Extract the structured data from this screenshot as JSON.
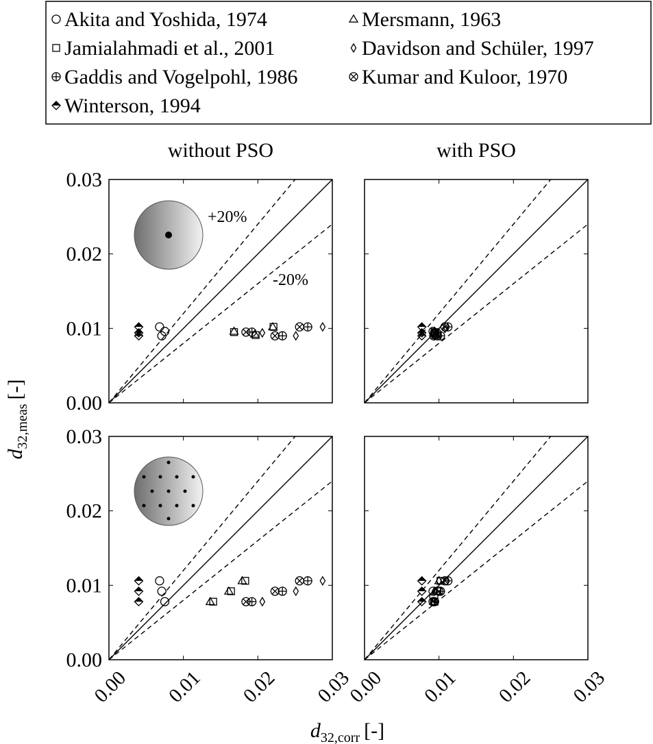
{
  "chart_data": {
    "type": "scatter",
    "column_titles": [
      "without PSO",
      "with PSO"
    ],
    "xlabel": {
      "symbol": "d",
      "subscript": "32,corr",
      "unit": "[-]"
    },
    "ylabel": {
      "symbol": "d",
      "subscript": "32,meas",
      "unit": "[-]"
    },
    "xlim": [
      0,
      0.03
    ],
    "ylim": [
      0,
      0.03
    ],
    "xticks": [
      {
        "value": 0,
        "label": "0.00"
      },
      0.01,
      0.02,
      0.03
    ],
    "yticks": [
      {
        "value": 0,
        "label": "0.00"
      },
      0.01,
      0.02,
      0.03
    ],
    "reference_lines": [
      {
        "slope": 1,
        "dashed": false
      },
      {
        "slope": 1.2,
        "dashed": true
      },
      {
        "slope": 0.8,
        "dashed": true
      }
    ],
    "annotations": [
      "+20%",
      "-20%"
    ],
    "series": [
      {
        "name": "Akita and Yoshida, 1974",
        "marker": "circle",
        "x": [
          [
            0.0068,
            0.0071,
            0.0075
          ],
          [
            0.0092,
            0.0094,
            0.0093
          ],
          [
            0.0068,
            0.0071,
            0.0075
          ],
          [
            0.0092,
            0.0094,
            0.0093
          ]
        ],
        "values": [
          [
            0.0102,
            0.009,
            0.0096
          ],
          [
            0.0096,
            0.0094,
            0.009
          ],
          [
            0.0106,
            0.0092,
            0.0078
          ],
          [
            0.0092,
            0.0078,
            0.0085
          ]
        ]
      },
      {
        "name": "Mersmann, 1963",
        "marker": "triangle",
        "x": [
          [
            0.0168,
            0.0196,
            0.022
          ],
          [
            0.0094,
            0.0094,
            0.0096
          ],
          [
            0.0136,
            0.0161,
            0.0179
          ],
          [
            0.0093,
            0.0096,
            0.01
          ]
        ],
        "values": [
          [
            0.0096,
            0.0092,
            0.0102
          ],
          [
            0.0096,
            0.0094,
            0.0092
          ],
          [
            0.0078,
            0.0092,
            0.0106
          ],
          [
            0.0078,
            0.0092,
            0.0106
          ]
        ]
      },
      {
        "name": "Jamialahmadi et al., 2001",
        "marker": "square",
        "x": [
          [
            0.0168,
            0.0197,
            0.0221
          ],
          [
            0.0094,
            0.0095,
            0.0095
          ],
          [
            0.014,
            0.0164,
            0.0183
          ],
          [
            0.0094,
            0.0098,
            0.0102
          ]
        ],
        "values": [
          [
            0.0095,
            0.0091,
            0.0102
          ],
          [
            0.0095,
            0.0093,
            0.0091
          ],
          [
            0.0078,
            0.0092,
            0.0106
          ],
          [
            0.0078,
            0.0092,
            0.0106
          ]
        ]
      },
      {
        "name": "Davidson and Schüler, 1997",
        "marker": "diamond",
        "x": [
          [
            0.0206,
            0.0251,
            0.0287
          ],
          [
            0.0094,
            0.01,
            0.0108
          ],
          [
            0.0206,
            0.0251,
            0.0287
          ],
          [
            0.0092,
            0.0094,
            0.01
          ]
        ],
        "values": [
          [
            0.0094,
            0.009,
            0.0102
          ],
          [
            0.009,
            0.0094,
            0.01
          ],
          [
            0.0078,
            0.0092,
            0.0106
          ],
          [
            0.0078,
            0.0092,
            0.0106
          ]
        ]
      },
      {
        "name": "Gaddis and Vogelpohl, 1986",
        "marker": "oplus",
        "x": [
          [
            0.0192,
            0.0233,
            0.0267
          ],
          [
            0.0094,
            0.0102,
            0.0112
          ],
          [
            0.0192,
            0.0233,
            0.0267
          ],
          [
            0.0094,
            0.0102,
            0.0112
          ]
        ],
        "values": [
          [
            0.0095,
            0.009,
            0.0102
          ],
          [
            0.0094,
            0.009,
            0.0102
          ],
          [
            0.0078,
            0.0092,
            0.0106
          ],
          [
            0.0078,
            0.0092,
            0.0106
          ]
        ]
      },
      {
        "name": "Kumar and Kuloor, 1970",
        "marker": "otimes",
        "x": [
          [
            0.0184,
            0.0223,
            0.0256
          ],
          [
            0.0094,
            0.0098,
            0.0108
          ],
          [
            0.0184,
            0.0223,
            0.0256
          ],
          [
            0.0092,
            0.01,
            0.0108
          ]
        ],
        "values": [
          [
            0.0095,
            0.009,
            0.0102
          ],
          [
            0.0094,
            0.009,
            0.0102
          ],
          [
            0.0078,
            0.0092,
            0.0106
          ],
          [
            0.0078,
            0.0092,
            0.0106
          ]
        ]
      },
      {
        "name": "Winterson, 1994",
        "marker": "halfdiamond",
        "x": [
          [
            0.004,
            0.004,
            0.004
          ],
          [
            0.0077,
            0.0077,
            0.0077
          ],
          [
            0.004,
            0.004,
            0.004
          ],
          [
            0.0077,
            0.0077,
            0.0077
          ]
        ],
        "values": [
          [
            0.0102,
            0.0094,
            0.009
          ],
          [
            0.0102,
            0.0094,
            0.009
          ],
          [
            0.0106,
            0.0092,
            0.0078
          ],
          [
            0.0106,
            0.0092,
            0.0078
          ]
        ]
      }
    ]
  }
}
